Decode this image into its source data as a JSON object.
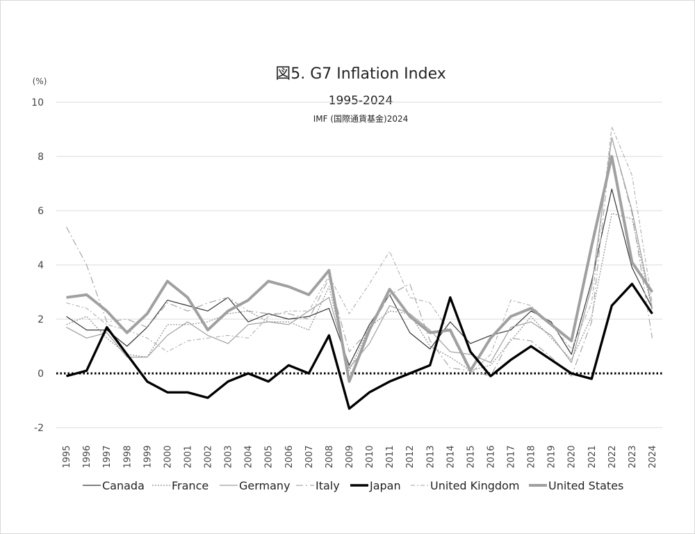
{
  "chart_data": {
    "type": "line",
    "title": "図5.  G7 Inflation Index",
    "subtitle": "1995-2024",
    "source": "IMF (国際通貨基金)2024",
    "ylabel": "(%)",
    "xlabel": "",
    "ylim": [
      -2,
      10
    ],
    "yticks": [
      "-2",
      "0",
      "2",
      "4",
      "6",
      "8",
      "10"
    ],
    "grid": true,
    "legend_position": "bottom",
    "categories": [
      "1995",
      "1996",
      "1997",
      "1998",
      "1999",
      "2000",
      "2001",
      "2002",
      "2003",
      "2004",
      "2005",
      "2006",
      "2007",
      "2008",
      "2009",
      "2010",
      "2011",
      "2012",
      "2013",
      "2014",
      "2015",
      "2016",
      "2017",
      "2018",
      "2019",
      "2020",
      "2021",
      "2022",
      "2023",
      "2024"
    ],
    "series": [
      {
        "name": "Canada",
        "color": "#333333",
        "values": [
          2.1,
          1.6,
          1.6,
          1.0,
          1.7,
          2.7,
          2.5,
          2.3,
          2.8,
          1.9,
          2.2,
          2.0,
          2.1,
          2.4,
          0.3,
          1.8,
          2.9,
          1.5,
          0.9,
          1.9,
          1.1,
          1.4,
          1.6,
          2.3,
          1.9,
          0.7,
          3.4,
          6.8,
          3.9,
          2.4
        ]
      },
      {
        "name": "France",
        "color": "#8c8c8c",
        "values": [
          1.8,
          2.1,
          1.3,
          0.7,
          0.6,
          1.8,
          1.8,
          1.9,
          2.2,
          2.3,
          1.9,
          1.9,
          1.6,
          3.2,
          0.1,
          1.7,
          2.3,
          2.2,
          1.0,
          0.6,
          0.1,
          0.3,
          1.2,
          2.1,
          1.3,
          0.5,
          2.1,
          5.9,
          5.7,
          2.3
        ]
      },
      {
        "name": "Germany",
        "color": "#9e9e9e",
        "values": [
          1.7,
          1.3,
          1.5,
          0.6,
          0.6,
          1.4,
          1.9,
          1.4,
          1.1,
          1.8,
          1.9,
          1.8,
          2.3,
          2.8,
          0.2,
          1.1,
          2.5,
          2.2,
          1.6,
          0.8,
          0.7,
          0.4,
          1.7,
          1.9,
          1.4,
          0.4,
          3.2,
          8.7,
          6.0,
          2.4
        ]
      },
      {
        "name": "Italy",
        "color": "#a6a6a6",
        "values": [
          5.4,
          4.0,
          1.9,
          2.0,
          1.7,
          2.6,
          2.3,
          2.6,
          2.8,
          2.3,
          2.2,
          2.2,
          2.0,
          3.5,
          0.8,
          1.6,
          2.9,
          3.3,
          1.2,
          0.2,
          0.1,
          -0.1,
          1.3,
          1.2,
          0.6,
          -0.1,
          1.9,
          8.7,
          5.9,
          1.3
        ]
      },
      {
        "name": "Japan",
        "color": "#000000",
        "values": [
          -0.1,
          0.1,
          1.7,
          0.7,
          -0.3,
          -0.7,
          -0.7,
          -0.9,
          -0.3,
          0.0,
          -0.3,
          0.3,
          0.0,
          1.4,
          -1.3,
          -0.7,
          -0.3,
          0.0,
          0.3,
          2.8,
          0.8,
          -0.1,
          0.5,
          1.0,
          0.5,
          0.0,
          -0.2,
          2.5,
          3.3,
          2.2
        ]
      },
      {
        "name": "United Kingdom",
        "color": "#b3b3b3",
        "values": [
          2.6,
          2.4,
          1.8,
          1.6,
          1.3,
          0.8,
          1.2,
          1.3,
          1.4,
          1.3,
          2.1,
          2.3,
          2.3,
          3.6,
          2.2,
          3.3,
          4.5,
          2.8,
          2.6,
          1.5,
          0.0,
          0.7,
          2.7,
          2.5,
          1.8,
          0.9,
          2.6,
          9.1,
          7.3,
          2.6
        ]
      },
      {
        "name": "United States",
        "color": "#a0a0a0",
        "values": [
          2.8,
          2.9,
          2.3,
          1.5,
          2.2,
          3.4,
          2.8,
          1.6,
          2.3,
          2.7,
          3.4,
          3.2,
          2.9,
          3.8,
          -0.3,
          1.6,
          3.1,
          2.1,
          1.5,
          1.6,
          0.1,
          1.3,
          2.1,
          2.4,
          1.8,
          1.2,
          4.7,
          8.0,
          4.1,
          3.0
        ]
      }
    ]
  }
}
